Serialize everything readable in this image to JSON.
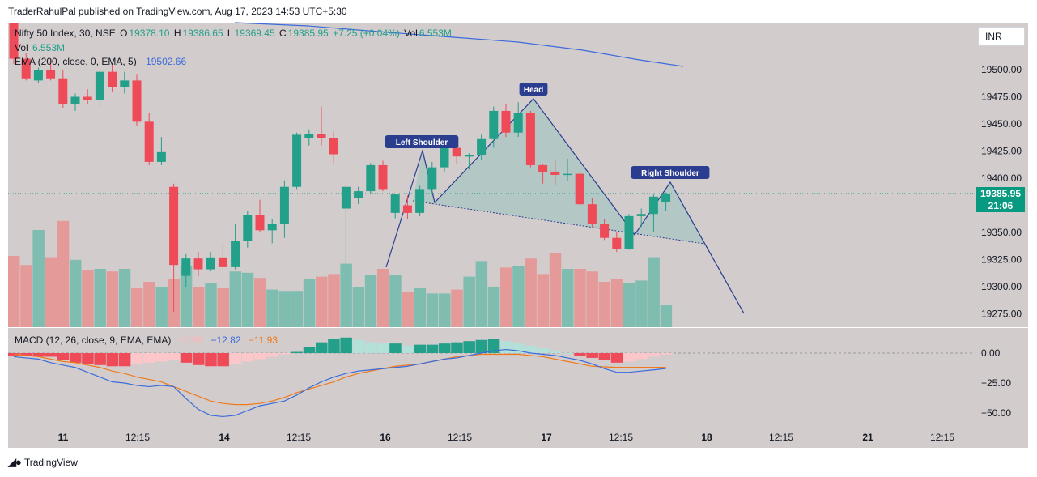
{
  "attribution": "TraderRahulPal published on TradingView.com, Aug 17, 2023 14:53 UTC+5:30",
  "footer": {
    "logo_text": "TradingView",
    "logo_icon": "tradingview-logo-icon"
  },
  "currency_button": "INR",
  "colors": {
    "up": "#22a08a",
    "down": "#ef4a57",
    "vol_up": "#7fbdb0",
    "vol_down": "#e39a98",
    "ema": "#3b6bdb",
    "pattern": "#2a3d8f",
    "macd_line": "#3b6bdb",
    "signal_line": "#ef7a1a",
    "hist_pos_dark": "#22a08a",
    "hist_pos_light": "#b3e0d8",
    "hist_neg_dark": "#ef4a57",
    "hist_neg_light": "#fdc7ca",
    "background": "#d3cccc"
  },
  "legend": {
    "symbol": "Nifty 50 Index, 30, NSE",
    "o_label": "O",
    "o_value": "19378.10",
    "h_label": "H",
    "h_value": "19386.65",
    "l_label": "L",
    "l_value": "19369.45",
    "c_label": "C",
    "c_value": "19385.95",
    "change": "+7.25 (+0.04%)",
    "vol_label": "Vol",
    "vol_value": "6.553M",
    "vol_row_label": "Vol",
    "vol_row_value": "6.553M",
    "ema_label": "EMA (200, close, 0, EMA, 5)",
    "ema_value": "19502.66",
    "macd_label": "MACD (12, 26, close, 9, EMA, EMA)",
    "macd_hist": "−0.89",
    "macd_line": "−12.82",
    "macd_signal": "−11.93"
  },
  "last_price": {
    "price": "19385.95",
    "countdown": "21:06"
  },
  "chart_data": [
    {
      "type": "candlestick",
      "title": "Nifty 50 Index, 30, NSE",
      "x_tick_labels": [
        "11",
        "12:15",
        "14",
        "12:15",
        "16",
        "12:15",
        "17",
        "12:15",
        "18",
        "12:15",
        "21",
        "12:15"
      ],
      "y_tick_labels": [
        "19500.00",
        "19475.00",
        "19450.00",
        "19425.00",
        "19400.00",
        "19350.00",
        "19325.00",
        "19300.00",
        "19275.00"
      ],
      "ylim": [
        19262,
        19550
      ],
      "candles": [
        [
          19560,
          19575,
          19505,
          19510
        ],
        [
          19510,
          19515,
          19490,
          19492
        ],
        [
          19490,
          19502,
          19488,
          19500
        ],
        [
          19500,
          19510,
          19490,
          19492
        ],
        [
          19492,
          19500,
          19465,
          19468
        ],
        [
          19468,
          19478,
          19462,
          19475
        ],
        [
          19475,
          19482,
          19468,
          19472
        ],
        [
          19472,
          19500,
          19465,
          19498
        ],
        [
          19498,
          19505,
          19480,
          19484
        ],
        [
          19484,
          19498,
          19478,
          19490
        ],
        [
          19490,
          19496,
          19448,
          19452
        ],
        [
          19452,
          19460,
          19412,
          19415
        ],
        [
          19415,
          19438,
          19412,
          19424
        ],
        [
          19392,
          19395,
          19277,
          19320
        ],
        [
          19310,
          19330,
          19300,
          19326
        ],
        [
          19326,
          19332,
          19310,
          19316
        ],
        [
          19316,
          19332,
          19314,
          19327
        ],
        [
          19327,
          19340,
          19316,
          19318
        ],
        [
          19318,
          19358,
          19316,
          19342
        ],
        [
          19342,
          19370,
          19336,
          19366
        ],
        [
          19366,
          19380,
          19350,
          19352
        ],
        [
          19352,
          19362,
          19340,
          19358
        ],
        [
          19358,
          19398,
          19345,
          19392
        ],
        [
          19392,
          19442,
          19390,
          19440
        ],
        [
          19437,
          19445,
          19430,
          19441
        ],
        [
          19441,
          19466,
          19430,
          19437
        ],
        [
          19437,
          19443,
          19414,
          19422
        ],
        [
          19372,
          19392,
          19318,
          19392
        ],
        [
          19382,
          19392,
          19376,
          19388
        ],
        [
          19388,
          19414,
          19385,
          19412
        ],
        [
          19412,
          19416,
          19388,
          19390
        ],
        [
          19368,
          19385,
          19363,
          19385
        ],
        [
          19375,
          19384,
          19362,
          19368
        ],
        [
          19368,
          19393,
          19365,
          19390
        ],
        [
          19390,
          19415,
          19385,
          19410
        ],
        [
          19410,
          19430,
          19406,
          19428
        ],
        [
          19428,
          19432,
          19413,
          19420
        ],
        [
          19420,
          19423,
          19408,
          19421
        ],
        [
          19421,
          19440,
          19417,
          19436
        ],
        [
          19436,
          19466,
          19428,
          19462
        ],
        [
          19462,
          19468,
          19438,
          19442
        ],
        [
          19442,
          19470,
          19438,
          19460
        ],
        [
          19460,
          19462,
          19410,
          19412
        ],
        [
          19412,
          19413,
          19395,
          19406
        ],
        [
          19406,
          19416,
          19393,
          19403
        ],
        [
          19403,
          19418,
          19397,
          19404
        ],
        [
          19404,
          19405,
          19375,
          19376
        ],
        [
          19376,
          19382,
          19355,
          19358
        ],
        [
          19358,
          19362,
          19343,
          19345
        ],
        [
          19345,
          19350,
          19332,
          19335
        ],
        [
          19335,
          19367,
          19334,
          19365
        ],
        [
          19365,
          19372,
          19355,
          19367
        ],
        [
          19367,
          19386,
          19350,
          19383
        ],
        [
          19378.1,
          19386.65,
          19369.45,
          19385.95
        ]
      ],
      "ema200": [
        19560,
        19556,
        19552,
        19548,
        19544,
        19540,
        19536,
        19532,
        19528,
        19524,
        19520,
        19516,
        19512,
        19508,
        19504,
        19502.66
      ],
      "annotations": [
        {
          "text": "Head",
          "price": 19471,
          "bar": 40
        },
        {
          "text": "Left Shoulder",
          "price": 19422,
          "bar": 30
        },
        {
          "text": "Right Shoulder",
          "price": 19396,
          "bar": 51
        }
      ]
    },
    {
      "type": "bar",
      "title": "Vol",
      "values": [
        0.55,
        0.48,
        0.75,
        0.54,
        0.82,
        0.52,
        0.44,
        0.45,
        0.43,
        0.45,
        0.3,
        0.35,
        0.31,
        0.37,
        0.47,
        0.31,
        0.34,
        0.3,
        0.43,
        0.42,
        0.38,
        0.29,
        0.28,
        0.28,
        0.37,
        0.39,
        0.41,
        0.49,
        0.31,
        0.4,
        0.45,
        0.4,
        0.27,
        0.3,
        0.26,
        0.26,
        0.29,
        0.39,
        0.51,
        0.31,
        0.46,
        0.47,
        0.53,
        0.41,
        0.57,
        0.45,
        0.45,
        0.43,
        0.35,
        0.37,
        0.34,
        0.36,
        0.54,
        0.17
      ],
      "ylim": [
        0,
        1.0
      ]
    },
    {
      "type": "line",
      "title": "MACD (12, 26, close, 9, EMA, EMA)",
      "y_tick_labels": [
        "0.00",
        "−25.00",
        "−50.00"
      ],
      "ylim": [
        -58,
        8
      ],
      "histogram": [
        -2,
        -2,
        -3,
        -3,
        -6,
        -8,
        -9,
        -10,
        -11,
        -11,
        -9,
        -8,
        -7,
        -6,
        -8,
        -10,
        -11,
        -11,
        -9,
        -7,
        -5,
        -3,
        -1,
        1,
        5,
        9,
        12,
        13,
        11,
        9,
        8,
        8,
        6,
        7,
        7,
        8,
        9,
        10,
        11,
        12,
        10,
        8,
        6,
        4,
        2,
        0,
        -2,
        -4,
        -6,
        -8,
        -7,
        -5,
        -3,
        -1
      ],
      "macd": [
        -3,
        -4,
        -5,
        -8,
        -10,
        -12,
        -16,
        -20,
        -24,
        -25,
        -27,
        -28,
        -27,
        -28,
        -38,
        -47,
        -52,
        -53,
        -52,
        -48,
        -44,
        -42,
        -40,
        -35,
        -29,
        -24,
        -20,
        -17,
        -15,
        -14,
        -13,
        -12,
        -11,
        -9,
        -7,
        -5,
        -4,
        -2,
        0,
        2,
        3,
        2,
        0,
        -1,
        -2,
        -4,
        -6,
        -9,
        -13,
        -16,
        -16,
        -15,
        -14,
        -12.82
      ],
      "signal": [
        -1,
        -2,
        -3,
        -5,
        -7,
        -8,
        -10,
        -12,
        -15,
        -17,
        -20,
        -22,
        -24,
        -28,
        -32,
        -36,
        -40,
        -42,
        -43,
        -43,
        -42,
        -40,
        -37,
        -33,
        -30,
        -27,
        -24,
        -20,
        -17,
        -15,
        -13,
        -11,
        -10,
        -9,
        -7,
        -5,
        -3,
        -2,
        -1,
        -1,
        -1,
        -1,
        -2,
        -3,
        -5,
        -7,
        -9,
        -11,
        -11.5,
        -11.9,
        -11.93,
        -11.93,
        -11.93,
        -11.93
      ]
    }
  ]
}
